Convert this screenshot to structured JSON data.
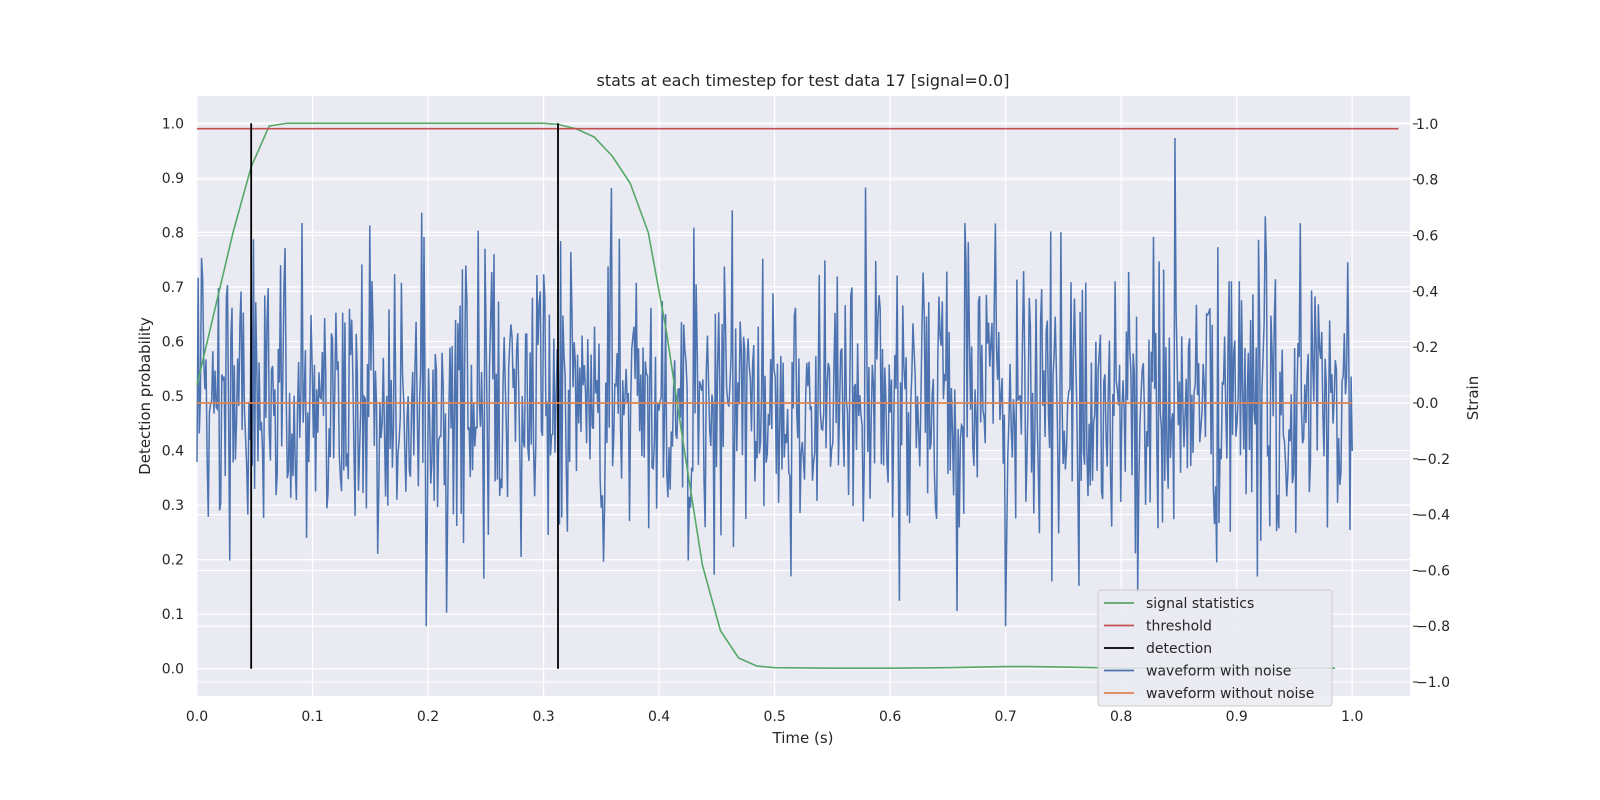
{
  "chart_data": {
    "type": "line",
    "title": "stats at each timestep for test data 17 [signal=0.0]",
    "xlabel": "Time (s)",
    "ylabel_left": "Detection probability",
    "ylabel_right": "Strain",
    "xlim": [
      0.0,
      1.05
    ],
    "ylim_left": [
      -0.05,
      1.05
    ],
    "ylim_right": [
      -1.05,
      1.1
    ],
    "x_ticks": [
      "0.0",
      "0.1",
      "0.2",
      "0.3",
      "0.4",
      "0.5",
      "0.6",
      "0.7",
      "0.8",
      "0.9",
      "1.0"
    ],
    "y_left_ticks": [
      "0.0",
      "0.1",
      "0.2",
      "0.3",
      "0.4",
      "0.5",
      "0.6",
      "0.7",
      "0.8",
      "0.9",
      "1.0"
    ],
    "y_right_ticks": [
      "−1.0",
      "−0.8",
      "−0.6",
      "−0.4",
      "−0.2",
      "0.0",
      "0.2",
      "0.4",
      "0.6",
      "0.8",
      "1.0"
    ],
    "grid": true,
    "legend_position": "lower-right",
    "series": [
      {
        "name": "signal statistics",
        "axis": "left",
        "color": "#55a868",
        "x": [
          0.0,
          0.0156,
          0.0312,
          0.0469,
          0.0625,
          0.0781,
          0.1,
          0.2,
          0.3,
          0.3125,
          0.3281,
          0.3437,
          0.3594,
          0.375,
          0.3906,
          0.4062,
          0.4219,
          0.4375,
          0.4531,
          0.4687,
          0.4844,
          0.5,
          0.55,
          0.6,
          0.65,
          0.7,
          0.72,
          0.75,
          0.8,
          0.85,
          0.9,
          0.95,
          0.985
        ],
        "y": [
          0.52,
          0.66,
          0.8,
          0.92,
          0.995,
          1.0,
          1.0,
          1.0,
          1.0,
          0.998,
          0.99,
          0.975,
          0.94,
          0.89,
          0.8,
          0.62,
          0.4,
          0.19,
          0.07,
          0.02,
          0.005,
          0.002,
          0.001,
          0.001,
          0.002,
          0.004,
          0.004,
          0.003,
          0.001,
          0.001,
          0.002,
          0.001,
          0.001
        ]
      },
      {
        "name": "threshold",
        "axis": "left",
        "color": "#c44e52",
        "x": [
          0.0,
          1.04
        ],
        "y": [
          0.99,
          0.99
        ]
      },
      {
        "name": "detection",
        "axis": "left",
        "color": "#000000",
        "x": [
          0.0469,
          0.3125
        ],
        "y_range": [
          0.0,
          1.0
        ]
      },
      {
        "name": "waveform with noise",
        "axis": "right",
        "color": "#4c72b0",
        "x_range": [
          0.0,
          1.0
        ],
        "samples": 1024,
        "amplitude_range": [
          -0.8,
          1.0
        ]
      },
      {
        "name": "waveform without noise",
        "axis": "right",
        "color": "#dd8452",
        "x": [
          0.0,
          1.0
        ],
        "y": [
          0.0,
          0.0
        ]
      }
    ]
  }
}
